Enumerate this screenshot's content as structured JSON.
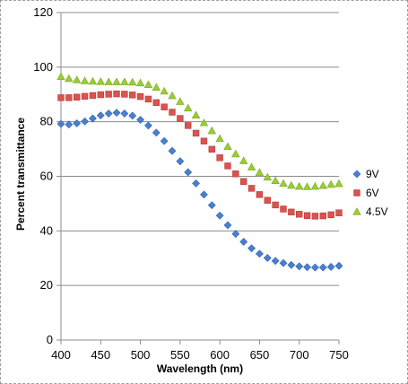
{
  "chart_data": {
    "type": "scatter",
    "title": "",
    "xlabel": "Wavelength (nm)",
    "ylabel": "Percent transmittance",
    "xlim": [
      400,
      750
    ],
    "ylim": [
      0,
      120
    ],
    "xticks": [
      "400",
      "450",
      "500",
      "550",
      "600",
      "650",
      "700",
      "750"
    ],
    "yticks": [
      "0",
      "20",
      "40",
      "60",
      "80",
      "100",
      "120"
    ],
    "grid": "horizontal",
    "legend_position": "right",
    "x": [
      400,
      410,
      420,
      430,
      440,
      450,
      460,
      470,
      480,
      490,
      500,
      510,
      520,
      530,
      540,
      550,
      560,
      570,
      580,
      590,
      600,
      610,
      620,
      630,
      640,
      650,
      660,
      670,
      680,
      690,
      700,
      710,
      720,
      730,
      740,
      750
    ],
    "series": [
      {
        "name": "9V",
        "marker": "diamond",
        "color": "#4a7fd0",
        "values": [
          79.2,
          79.0,
          79.4,
          80.1,
          81.2,
          82.3,
          83.0,
          83.3,
          83.0,
          82.2,
          80.7,
          78.6,
          76.0,
          72.9,
          69.3,
          65.5,
          61.5,
          57.4,
          53.3,
          49.4,
          45.6,
          42.1,
          38.9,
          36.0,
          33.6,
          31.6,
          30.1,
          29.0,
          28.2,
          27.5,
          27.0,
          26.7,
          26.6,
          26.6,
          26.8,
          27.2
        ]
      },
      {
        "name": "6V",
        "marker": "square",
        "color": "#d9534f",
        "values": [
          88.8,
          88.8,
          89.0,
          89.3,
          89.6,
          89.9,
          90.1,
          90.2,
          90.1,
          89.8,
          89.2,
          88.3,
          87.0,
          85.4,
          83.5,
          81.2,
          78.6,
          75.8,
          72.9,
          69.9,
          66.8,
          63.8,
          60.9,
          58.1,
          55.6,
          53.3,
          51.2,
          49.5,
          48.0,
          46.9,
          46.1,
          45.6,
          45.4,
          45.5,
          45.9,
          46.6
        ]
      },
      {
        "name": "4.5V",
        "marker": "triangle",
        "color": "#9acd32",
        "values": [
          96.5,
          95.8,
          95.3,
          95.0,
          94.8,
          94.7,
          94.6,
          94.6,
          94.6,
          94.5,
          94.2,
          93.6,
          92.6,
          91.2,
          89.5,
          87.4,
          85.0,
          82.4,
          79.6,
          76.7,
          73.8,
          70.9,
          68.2,
          65.7,
          63.4,
          61.4,
          59.7,
          58.4,
          57.4,
          56.7,
          56.3,
          56.2,
          56.3,
          56.6,
          57.0,
          57.3
        ]
      }
    ]
  }
}
